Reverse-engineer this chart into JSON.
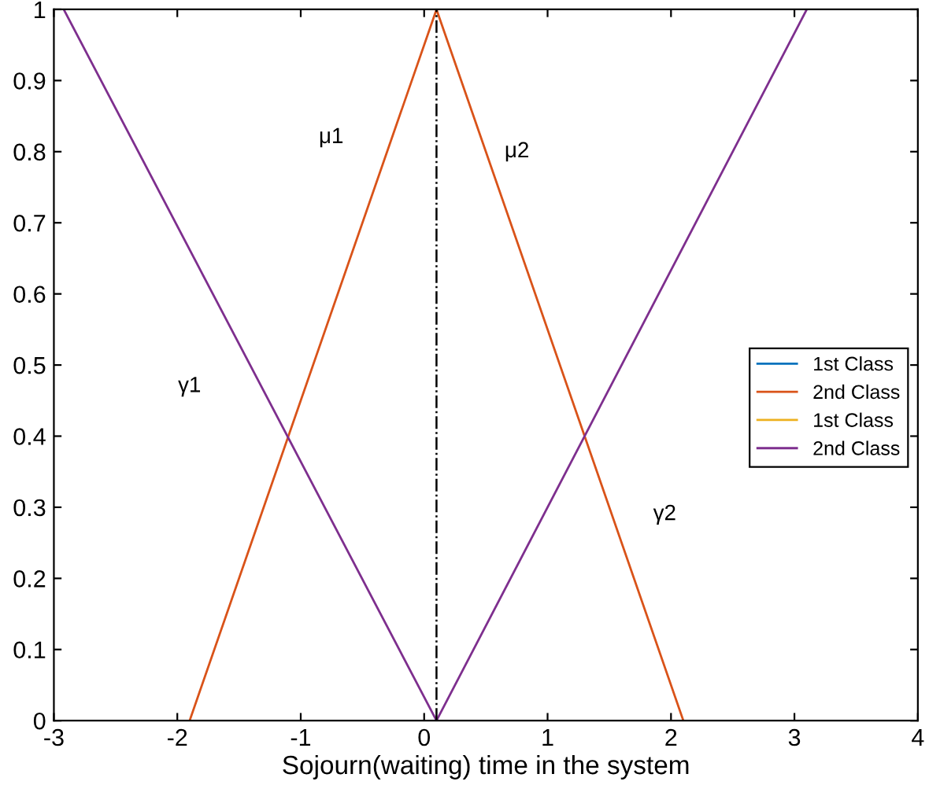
{
  "chart_data": {
    "type": "line",
    "xlabel": "Sojourn(waiting) time in the system",
    "xlim": [
      -3,
      4
    ],
    "xticks": [
      -3,
      -2,
      -1,
      0,
      1,
      2,
      3,
      4
    ],
    "ylim": [
      0,
      1
    ],
    "yticks": [
      0,
      0.1,
      0.2,
      0.3,
      0.4,
      0.5,
      0.6,
      0.7,
      0.8,
      0.9,
      1
    ],
    "grid": false,
    "legend": "right",
    "marker": "none",
    "line_style": "solid",
    "series": [
      {
        "name": "1st Class",
        "color": "#0072bd",
        "x": [
          null,
          null,
          null
        ],
        "values": [
          null,
          null,
          null
        ]
      },
      {
        "name": "2nd Class",
        "color": "#d95319",
        "x": [
          -1.9,
          0.1,
          2.1
        ],
        "values": [
          0,
          1,
          0
        ]
      },
      {
        "name": "1st Class",
        "color": "#edb120",
        "x": [
          null,
          null,
          null
        ],
        "values": [
          null,
          null,
          null
        ]
      },
      {
        "name": "2nd Class",
        "color": "#7e2f8e",
        "x": [
          -2.92,
          0.1,
          3.1
        ],
        "values": [
          1,
          0,
          1
        ]
      }
    ],
    "ref_lines": [
      {
        "axis": "x",
        "value": 0.1,
        "label": null,
        "color": "#000000",
        "line_style": "dashdot"
      }
    ],
    "annotations": [
      "μ1",
      "μ2",
      "γ1",
      "γ2"
    ]
  }
}
